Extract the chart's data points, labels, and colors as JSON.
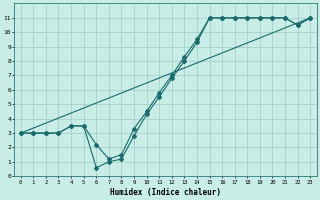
{
  "xlabel": "Humidex (Indice chaleur)",
  "bg_color": "#c8ece6",
  "grid_color": "#a0ccc6",
  "line_color": "#1a6b6b",
  "xlim": [
    -0.5,
    23.5
  ],
  "ylim": [
    0,
    12
  ],
  "xticks": [
    0,
    1,
    2,
    3,
    4,
    5,
    6,
    7,
    8,
    9,
    10,
    11,
    12,
    13,
    14,
    15,
    16,
    17,
    18,
    19,
    20,
    21,
    22,
    23
  ],
  "yticks": [
    0,
    1,
    2,
    3,
    4,
    5,
    6,
    7,
    8,
    9,
    10,
    11
  ],
  "line1_x": [
    0,
    1,
    2,
    3,
    4,
    5,
    6,
    7,
    8,
    9,
    10,
    11,
    12,
    13,
    14,
    15,
    16,
    17,
    18,
    19,
    20,
    21,
    22,
    23
  ],
  "line1_y": [
    3,
    3,
    3,
    3,
    3.5,
    3.5,
    2.2,
    1.2,
    1.5,
    3.3,
    4.5,
    5.8,
    7.0,
    8.3,
    9.5,
    11,
    11,
    11,
    11,
    11,
    11,
    11,
    10.5,
    11
  ],
  "line2_x": [
    0,
    1,
    2,
    3,
    4,
    5,
    6,
    7,
    8,
    9,
    10,
    11,
    12,
    13,
    14,
    15,
    16,
    17,
    18,
    19,
    20,
    21,
    22,
    23
  ],
  "line2_y": [
    3,
    3,
    3,
    3,
    3.5,
    3.5,
    0.6,
    1.0,
    1.2,
    2.8,
    4.3,
    5.5,
    6.8,
    8.0,
    9.3,
    11,
    11,
    11,
    11,
    11,
    11,
    11,
    10.5,
    11
  ],
  "line3_x": [
    0,
    23
  ],
  "line3_y": [
    3,
    11
  ]
}
